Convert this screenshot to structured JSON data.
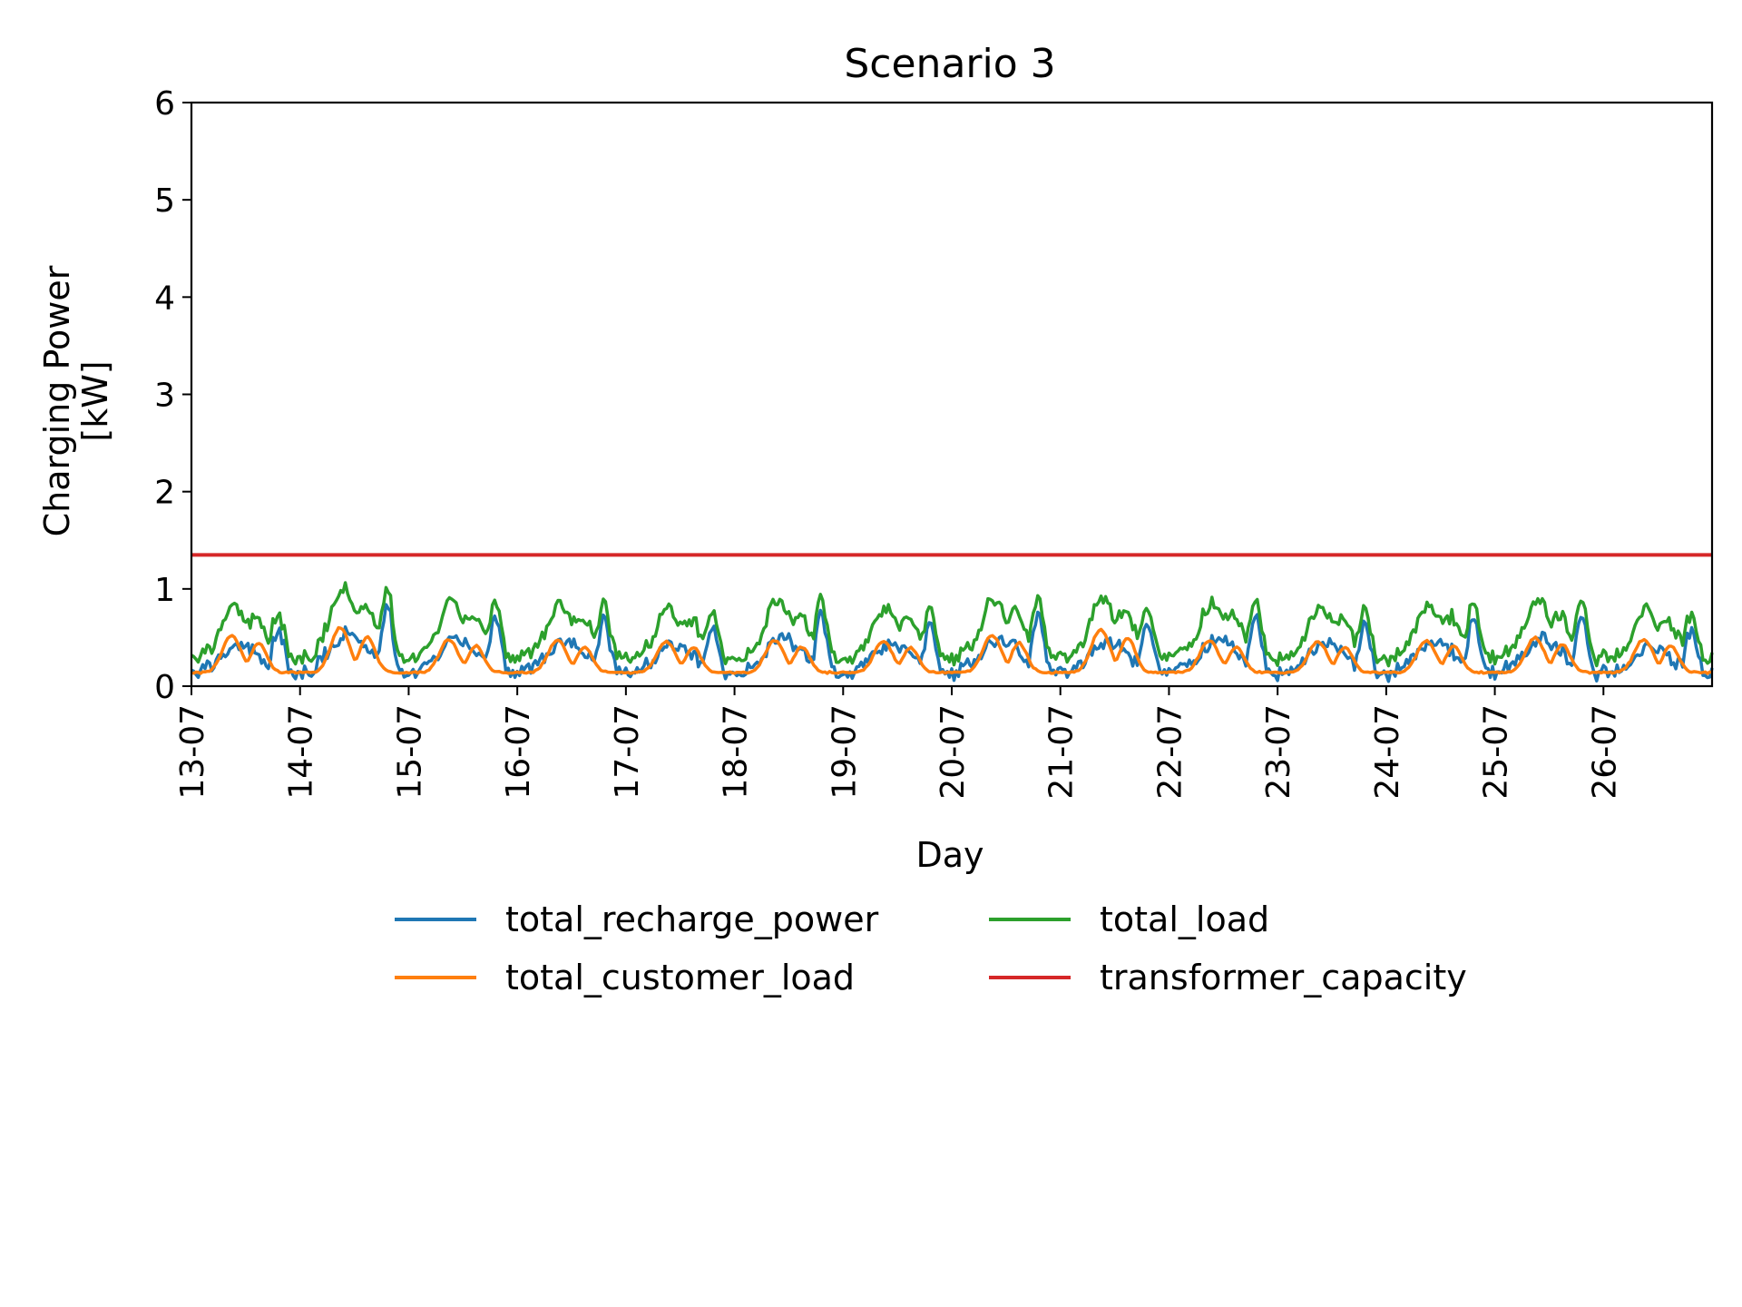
{
  "chart_data": {
    "type": "line",
    "title": "Scenario 3",
    "xlabel": "Day",
    "ylabel_line1": "Charging Power",
    "ylabel_line2": "[kW]",
    "ylim": [
      0,
      6
    ],
    "xlim": [
      0,
      14
    ],
    "yticks": [
      "0",
      "1",
      "2",
      "3",
      "4",
      "5",
      "6"
    ],
    "xticks": [
      "13-07",
      "14-07",
      "15-07",
      "16-07",
      "17-07",
      "18-07",
      "19-07",
      "20-07",
      "21-07",
      "22-07",
      "23-07",
      "24-07",
      "25-07",
      "26-07"
    ],
    "grid": false,
    "legend_position": "below",
    "day_peaks": {
      "total_load": [
        1.06,
        1.18,
        1.11,
        1.08,
        1.03,
        1.11,
        1.02,
        1.13,
        1.04,
        1.12,
        1.08,
        1.12,
        1.09,
        0.9
      ],
      "total_recharge_power": [
        0.62,
        0.83,
        0.72,
        0.7,
        0.6,
        0.72,
        0.65,
        0.74,
        0.65,
        0.72,
        0.66,
        0.7,
        0.73,
        0.58
      ],
      "total_customer_load": [
        0.52,
        0.6,
        0.48,
        0.47,
        0.46,
        0.47,
        0.46,
        0.52,
        0.58,
        0.47,
        0.46,
        0.47,
        0.5,
        0.48
      ]
    },
    "series": [
      {
        "name": "total_recharge_power",
        "color": "#1f77b4"
      },
      {
        "name": "total_customer_load",
        "color": "#ff7f0e"
      },
      {
        "name": "total_load",
        "color": "#2ca02c"
      },
      {
        "name": "transformer_capacity",
        "color": "#d62728",
        "value": 1.35
      }
    ]
  }
}
